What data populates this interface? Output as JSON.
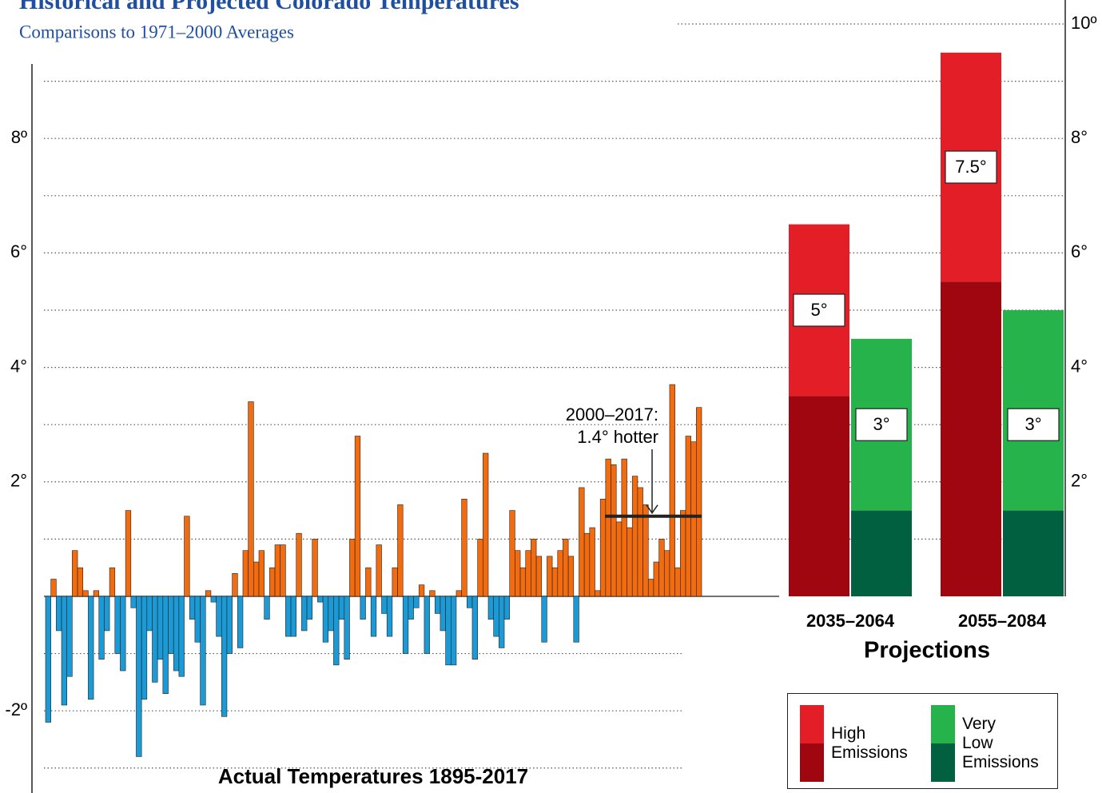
{
  "chart_data": [
    {
      "type": "bar",
      "title": "Historical and Projected Colorado Temperatures",
      "subtitle": "Comparisons to 1971–2000 Averages",
      "xlabel": "Actual Temperatures 1895-2017",
      "values": [
        -2.2,
        0.3,
        -0.6,
        -1.9,
        -1.4,
        0.8,
        0.5,
        0.1,
        -1.8,
        0.1,
        -1.1,
        -0.6,
        0.5,
        -1.0,
        -1.3,
        1.5,
        -0.2,
        -2.8,
        -1.8,
        -0.6,
        -1.5,
        -1.1,
        -1.7,
        -1.0,
        -1.3,
        -1.4,
        1.4,
        -0.4,
        -0.8,
        -1.9,
        0.1,
        -0.1,
        -0.7,
        -2.1,
        -1.0,
        0.4,
        -0.9,
        0.8,
        3.4,
        0.6,
        0.8,
        -0.4,
        0.5,
        0.9,
        0.9,
        -0.7,
        -0.7,
        1.1,
        -0.6,
        -0.4,
        1.0,
        -0.1,
        -0.8,
        -0.6,
        -1.2,
        -0.4,
        -1.1,
        1.0,
        2.8,
        -0.4,
        0.5,
        -0.7,
        0.9,
        -0.3,
        -0.7,
        0.5,
        1.6,
        -1.0,
        -0.4,
        -0.2,
        0.2,
        -1.0,
        0.1,
        -0.3,
        -0.6,
        -1.2,
        -1.2,
        0.1,
        1.7,
        -0.2,
        -1.1,
        1.0,
        2.5,
        -0.4,
        -0.7,
        -0.9,
        -0.4,
        1.5,
        0.8,
        0.5,
        0.8,
        1.0,
        0.7,
        -0.8,
        0.7,
        0.5,
        0.8,
        1.0,
        0.7,
        -0.8,
        1.9,
        1.1,
        1.2,
        0.1,
        1.7,
        2.4,
        2.3,
        1.3,
        2.4,
        1.2,
        2.1,
        1.9,
        1.6,
        0.3,
        0.6,
        1.0,
        0.8,
        3.7,
        0.5,
        1.5,
        2.8,
        2.7,
        3.3
      ],
      "positive_color": "#f26b0f",
      "negative_color": "#1b9ad6",
      "ylim": [
        -3.4,
        10.2
      ],
      "yticks": [
        {
          "value": -2,
          "label": "-2º"
        },
        {
          "value": 2,
          "label": "2°"
        },
        {
          "value": 4,
          "label": "4°"
        },
        {
          "value": 6,
          "label": "6°"
        },
        {
          "value": 8,
          "label": "8º"
        }
      ],
      "minor_yticks": [
        -3,
        -1,
        1,
        3,
        5,
        7,
        9
      ],
      "grid": true,
      "annotation": {
        "text": [
          "2000–2017:",
          "1.4° hotter"
        ],
        "value": 1.4
      }
    },
    {
      "type": "stacked_range_bar",
      "xlabel": "Projections",
      "categories": [
        "2035–2064",
        "2055–2084"
      ],
      "series": [
        {
          "name": "High Emissions",
          "color": "#e31e26",
          "base_color": "#a0060f",
          "base": [
            3.5,
            5.5
          ],
          "range": [
            3.0,
            4.0
          ],
          "values": [
            5,
            7.5
          ],
          "value_labels": [
            "5°",
            "7.5°"
          ]
        },
        {
          "name": "Very Low Emissions",
          "color": "#27b34b",
          "base_color": "#006040",
          "base": [
            1.5,
            1.5
          ],
          "range": [
            3.0,
            3.5
          ],
          "values": [
            3,
            3
          ],
          "value_labels": [
            "3°",
            "3°"
          ]
        }
      ],
      "y2lim": [
        0,
        10.2
      ],
      "y2ticks": [
        {
          "value": 2,
          "label": "2°"
        },
        {
          "value": 4,
          "label": "4°"
        },
        {
          "value": 6,
          "label": "6°"
        },
        {
          "value": 8,
          "label": "8°"
        },
        {
          "value": 10,
          "label": "10º"
        }
      ]
    }
  ]
}
